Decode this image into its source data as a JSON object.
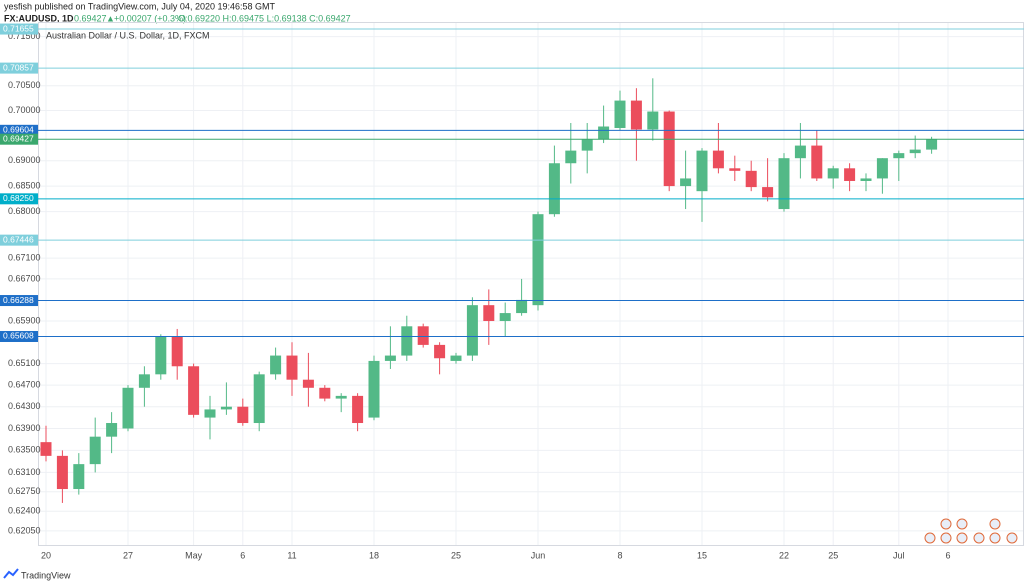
{
  "header": {
    "publisher": "yesfish published on TradingView.com, July 04, 2020 19:46:58 GMT",
    "symbol": "FX:AUDUSD, 1D",
    "last": "0.69427",
    "change": "+0.00207 (+0.3%)",
    "ohlc": "O:0.69220 H:0.69475 L:0.69138 C:0.69427"
  },
  "footer": {
    "brand": "TradingView"
  },
  "chart_data": {
    "type": "candlestick",
    "title": "Australian Dollar / U.S. Dollar, 1D, FXCM",
    "categories": [
      "20",
      null,
      null,
      null,
      null,
      "27",
      null,
      null,
      null,
      "May",
      null,
      null,
      "6",
      null,
      null,
      "11",
      null,
      null,
      null,
      null,
      "18",
      null,
      null,
      null,
      null,
      "25",
      null,
      null,
      null,
      null,
      "Jun",
      null,
      null,
      null,
      null,
      "8",
      null,
      null,
      null,
      null,
      "15",
      null,
      null,
      null,
      null,
      "22",
      null,
      null,
      "25",
      null,
      null,
      null,
      "Jul",
      null,
      null,
      "6"
    ],
    "open": [
      0.6365,
      0.634,
      0.628,
      0.6325,
      0.6375,
      0.639,
      0.6465,
      0.649,
      0.656,
      0.6505,
      0.641,
      0.6425,
      0.643,
      0.64,
      0.649,
      0.6525,
      0.648,
      0.6465,
      0.6445,
      0.645,
      0.641,
      0.6515,
      0.6525,
      0.658,
      0.6545,
      0.6515,
      0.6525,
      0.662,
      0.659,
      0.6605,
      0.662,
      0.6795,
      0.6895,
      0.692,
      0.6942,
      0.6965,
      0.702,
      0.6962,
      0.6998,
      0.685,
      0.684,
      0.692,
      0.6885,
      0.688,
      0.6848,
      0.6805,
      0.6905,
      0.693,
      0.6865,
      0.6885,
      0.686,
      0.6865,
      0.6905,
      0.6915,
      0.6922,
      null
    ],
    "high": [
      0.6395,
      0.635,
      0.6345,
      0.641,
      0.642,
      0.647,
      0.6505,
      0.6565,
      0.6575,
      0.651,
      0.645,
      0.6475,
      0.6445,
      0.6495,
      0.654,
      0.655,
      0.653,
      0.647,
      0.6455,
      0.6455,
      0.6525,
      0.658,
      0.66,
      0.6585,
      0.655,
      0.653,
      0.6635,
      0.665,
      0.6625,
      0.667,
      0.68,
      0.693,
      0.6975,
      0.6975,
      0.701,
      0.704,
      0.7045,
      0.7065,
      0.7,
      0.692,
      0.6925,
      0.6975,
      0.691,
      0.69,
      0.6905,
      0.6915,
      0.6975,
      0.696,
      0.689,
      0.6895,
      0.6875,
      0.6905,
      0.692,
      0.695,
      0.69475,
      null
    ],
    "low": [
      0.633,
      0.6255,
      0.627,
      0.631,
      0.6345,
      0.6385,
      0.643,
      0.648,
      0.648,
      0.641,
      0.637,
      0.6415,
      0.6395,
      0.6385,
      0.648,
      0.645,
      0.643,
      0.644,
      0.642,
      0.6385,
      0.6405,
      0.65,
      0.6515,
      0.654,
      0.649,
      0.651,
      0.6515,
      0.6545,
      0.656,
      0.66,
      0.661,
      0.679,
      0.6855,
      0.6875,
      0.6935,
      0.696,
      0.69,
      0.694,
      0.684,
      0.6805,
      0.678,
      0.6875,
      0.686,
      0.684,
      0.682,
      0.68,
      0.6865,
      0.686,
      0.6845,
      0.684,
      0.684,
      0.6835,
      0.686,
      0.6905,
      0.69138,
      null
    ],
    "close": [
      0.634,
      0.628,
      0.6325,
      0.6375,
      0.64,
      0.6465,
      0.649,
      0.656,
      0.6505,
      0.6415,
      0.6425,
      0.643,
      0.64,
      0.649,
      0.6525,
      0.648,
      0.6465,
      0.6445,
      0.645,
      0.64,
      0.6515,
      0.6525,
      0.658,
      0.6545,
      0.652,
      0.6525,
      0.662,
      0.659,
      0.6605,
      0.663,
      0.6795,
      0.6895,
      0.692,
      0.6942,
      0.6968,
      0.702,
      0.6962,
      0.6998,
      0.685,
      0.6865,
      0.692,
      0.6885,
      0.688,
      0.6848,
      0.6828,
      0.6905,
      0.693,
      0.6865,
      0.6885,
      0.686,
      0.6865,
      0.6905,
      0.6915,
      0.6922,
      0.69427,
      null
    ],
    "up_color": "#53b987",
    "down_color": "#eb4d5c",
    "ylim": [
      0.618,
      0.718
    ],
    "log": true,
    "grid": true,
    "yticks": [
      {
        "value": 0.715,
        "label": "0.71500"
      },
      {
        "value": 0.705,
        "label": "0.70500"
      },
      {
        "value": 0.7,
        "label": "0.70000"
      },
      {
        "value": 0.69,
        "label": "0.69000"
      },
      {
        "value": 0.685,
        "label": "0.68500"
      },
      {
        "value": 0.68,
        "label": "0.68000"
      },
      {
        "value": 0.671,
        "label": "0.67100"
      },
      {
        "value": 0.667,
        "label": "0.66700"
      },
      {
        "value": 0.659,
        "label": "0.65900"
      },
      {
        "value": 0.651,
        "label": "0.65100"
      },
      {
        "value": 0.647,
        "label": "0.64700"
      },
      {
        "value": 0.643,
        "label": "0.64300"
      },
      {
        "value": 0.639,
        "label": "0.63900"
      },
      {
        "value": 0.635,
        "label": "0.63500"
      },
      {
        "value": 0.631,
        "label": "0.63100"
      },
      {
        "value": 0.6275,
        "label": "0.62750"
      },
      {
        "value": 0.624,
        "label": "0.62400"
      },
      {
        "value": 0.6205,
        "label": "0.62050"
      }
    ],
    "levels": [
      {
        "value": 0.71655,
        "color": "#7fcfdc"
      },
      {
        "value": 0.70857,
        "color": "#7fcfdc"
      },
      {
        "value": 0.69604,
        "color": "#1e6fc8"
      },
      {
        "value": 0.69427,
        "color": "#3aa76d"
      },
      {
        "value": {
          "value": 0.6825,
          "label": "0.68250"
        },
        "color": "#00aec9"
      },
      {
        "value": 0.67446,
        "color": "#7fcfdc"
      },
      {
        "value": 0.66288,
        "color": "#1e6fc8"
      },
      {
        "value": 0.65608,
        "color": "#1e6fc8"
      }
    ]
  }
}
